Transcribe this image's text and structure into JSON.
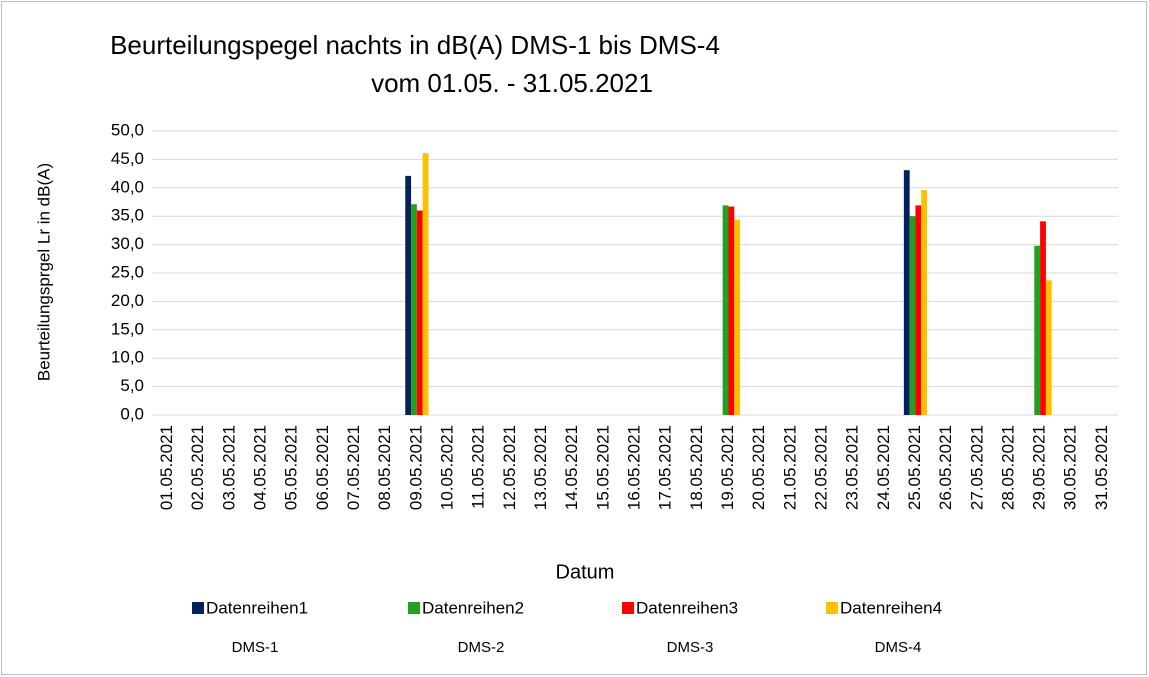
{
  "chart_data": {
    "type": "bar",
    "title": [
      "Beurteilungspegel nachts in dB(A) DMS-1 bis DMS-4",
      "vom 01.05. - 31.05.2021"
    ],
    "x_label": "Datum",
    "y_label": "Beurteilungsprgel  Lr in dB(A)",
    "categories": [
      "01.05.2021",
      "02.05.2021",
      "03.05.2021",
      "04.05.2021",
      "05.05.2021",
      "06.05.2021",
      "07.05.2021",
      "08.05.2021",
      "09.05.2021",
      "10.05.2021",
      "11.05.2021",
      "12.05.2021",
      "13.05.2021",
      "14.05.2021",
      "15.05.2021",
      "16.05.2021",
      "17.05.2021",
      "18.05.2021",
      "19.05.2021",
      "20.05.2021",
      "21.05.2021",
      "22.05.2021",
      "23.05.2021",
      "24.05.2021",
      "25.05.2021",
      "26.05.2021",
      "27.05.2021",
      "28.05.2021",
      "29.05.2021",
      "30.05.2021",
      "31.05.2021"
    ],
    "series": [
      {
        "name": "Datenreihen1",
        "color": "#002060",
        "values": [
          null,
          null,
          null,
          null,
          null,
          null,
          null,
          null,
          42.1,
          null,
          null,
          null,
          null,
          null,
          null,
          null,
          null,
          null,
          null,
          null,
          null,
          null,
          null,
          null,
          43.1,
          null,
          null,
          null,
          null,
          null,
          null
        ]
      },
      {
        "name": "Datenreihen2",
        "color": "#22a022",
        "values": [
          null,
          null,
          null,
          null,
          null,
          null,
          null,
          null,
          37.1,
          null,
          null,
          null,
          null,
          null,
          null,
          null,
          null,
          null,
          36.9,
          null,
          null,
          null,
          null,
          null,
          35.0,
          null,
          null,
          null,
          29.8,
          null,
          null
        ]
      },
      {
        "name": "Datenreihen3",
        "color": "#ff0000",
        "values": [
          null,
          null,
          null,
          null,
          null,
          null,
          null,
          null,
          36.0,
          null,
          null,
          null,
          null,
          null,
          null,
          null,
          null,
          null,
          36.7,
          null,
          null,
          null,
          null,
          null,
          36.9,
          null,
          null,
          null,
          34.1,
          null,
          null
        ]
      },
      {
        "name": "Datenreihen4",
        "color": "#ffc000",
        "values": [
          null,
          null,
          null,
          null,
          null,
          null,
          null,
          null,
          46.1,
          null,
          null,
          null,
          null,
          null,
          null,
          null,
          null,
          null,
          34.4,
          null,
          null,
          null,
          null,
          null,
          39.6,
          null,
          null,
          null,
          23.7,
          null,
          null
        ]
      }
    ],
    "legend_notes": [
      "DMS-1",
      "DMS-2",
      "DMS-3",
      "DMS-4"
    ],
    "ylim": [
      0,
      50
    ],
    "yticks": [
      {
        "value": 0,
        "label": "0,0"
      },
      {
        "value": 5,
        "label": "5,0"
      },
      {
        "value": 10,
        "label": "10,0"
      },
      {
        "value": 15,
        "label": "15,0"
      },
      {
        "value": 20,
        "label": "20,0"
      },
      {
        "value": 25,
        "label": "25,0"
      },
      {
        "value": 30,
        "label": "30,0"
      },
      {
        "value": 35,
        "label": "35,0"
      },
      {
        "value": 40,
        "label": "40,0"
      },
      {
        "value": 45,
        "label": "45,0"
      },
      {
        "value": 50,
        "label": "50,0"
      }
    ],
    "grid": true
  }
}
